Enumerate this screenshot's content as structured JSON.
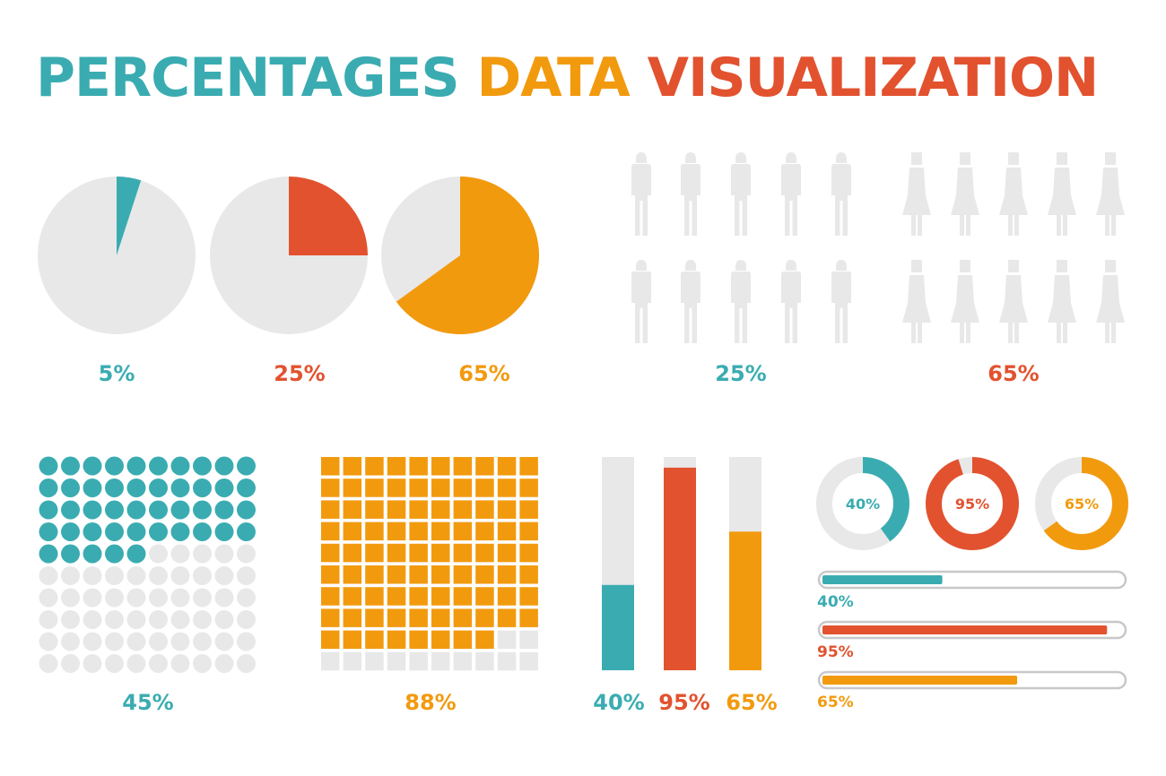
{
  "title": {
    "part1": "PERCENTAGES",
    "part2": "DATA",
    "part3": "VISUALIZATION"
  },
  "colors": {
    "teal": "#3aacb1",
    "red": "#e2522f",
    "orange": "#f29a0e",
    "gray": "#e8e8e8",
    "bar_border": "#c8c8c8"
  },
  "chart_data": [
    {
      "type": "pie",
      "id": "pie-5",
      "values": [
        5
      ],
      "label": "5%",
      "color": "teal"
    },
    {
      "type": "pie",
      "id": "pie-25",
      "values": [
        25
      ],
      "label": "25%",
      "color": "red"
    },
    {
      "type": "pie",
      "id": "pie-65",
      "values": [
        65
      ],
      "label": "65%",
      "color": "orange"
    },
    {
      "type": "pictogram",
      "id": "men-25",
      "icon": "man-icon",
      "values": [
        25
      ],
      "total": 10,
      "label": "25%",
      "color": "teal"
    },
    {
      "type": "pictogram",
      "id": "women-65",
      "icon": "woman-icon",
      "values": [
        65
      ],
      "total": 10,
      "label": "65%",
      "color": "red"
    },
    {
      "type": "waffle",
      "id": "dots-45",
      "shape": "circle",
      "values": [
        45
      ],
      "total": 100,
      "label": "45%",
      "color": "teal"
    },
    {
      "type": "waffle",
      "id": "squares-88",
      "shape": "square",
      "values": [
        88
      ],
      "total": 100,
      "label": "88%",
      "color": "orange"
    },
    {
      "type": "bar",
      "id": "vbars",
      "orientation": "vertical",
      "categories": [
        "40%",
        "95%",
        "65%"
      ],
      "values": [
        40,
        95,
        65
      ],
      "ylim": [
        0,
        100
      ],
      "colors": [
        "teal",
        "red",
        "orange"
      ]
    },
    {
      "type": "donut",
      "id": "donuts",
      "values": [
        40,
        95,
        65
      ],
      "labels": [
        "40%",
        "95%",
        "65%"
      ],
      "colors": [
        "teal",
        "red",
        "orange"
      ]
    },
    {
      "type": "bar",
      "id": "hbars",
      "orientation": "horizontal",
      "categories": [
        "40%",
        "95%",
        "65%"
      ],
      "values": [
        40,
        95,
        65
      ],
      "xlim": [
        0,
        100
      ],
      "colors": [
        "teal",
        "red",
        "orange"
      ]
    }
  ]
}
